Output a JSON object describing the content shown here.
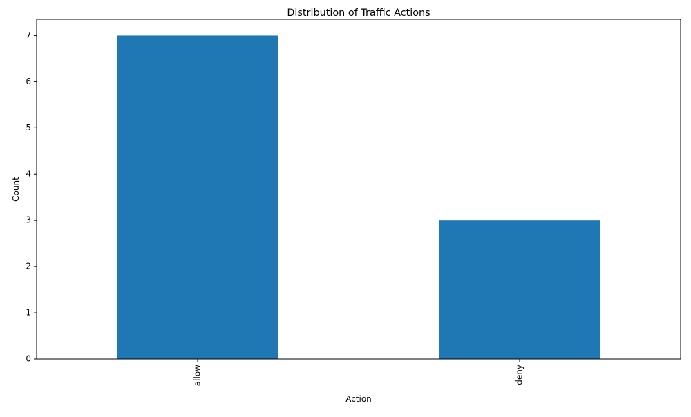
{
  "chart_data": {
    "type": "bar",
    "title": "Distribution of Traffic Actions",
    "xlabel": "Action",
    "ylabel": "Count",
    "categories": [
      "allow",
      "deny"
    ],
    "values": [
      7,
      3
    ],
    "ylim": [
      0,
      7.35
    ],
    "yticks": [
      0,
      1,
      2,
      3,
      4,
      5,
      6,
      7
    ],
    "grid": false,
    "legend": "none",
    "bar_color": "#1f77b4",
    "xtick_rotation": "vertical"
  }
}
